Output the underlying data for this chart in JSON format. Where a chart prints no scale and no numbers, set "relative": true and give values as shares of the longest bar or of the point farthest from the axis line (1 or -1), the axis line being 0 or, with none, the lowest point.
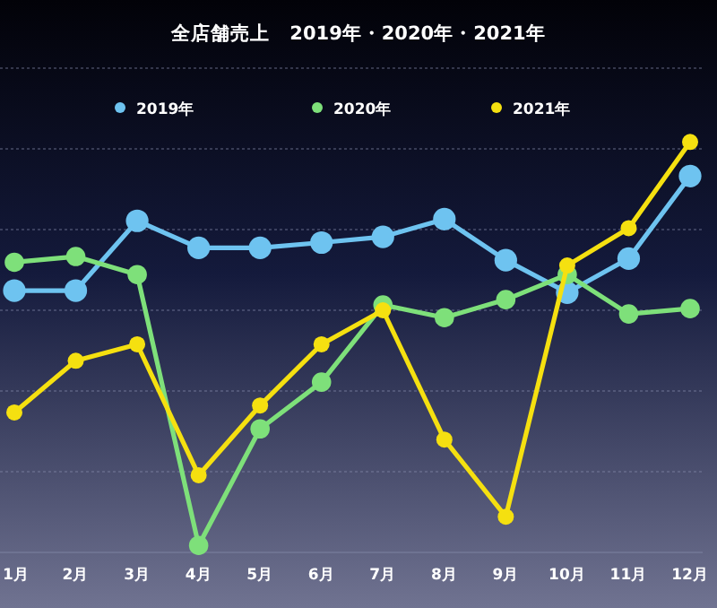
{
  "chart_data": {
    "type": "line",
    "title": "全店舗売上　2019年・2020年・2021年",
    "relative": true,
    "grid": "y",
    "legend": "top",
    "marker": "circle",
    "line_style": "solid",
    "categories": [
      "1月",
      "2月",
      "3月",
      "4月",
      "5月",
      "6月",
      "7月",
      "8月",
      "9月",
      "10月",
      "11月",
      "12月"
    ],
    "series": [
      {
        "name": "2019年",
        "color": "#6ec3f0",
        "values": [
          0.638,
          0.638,
          0.808,
          0.742,
          0.742,
          0.755,
          0.769,
          0.812,
          0.712,
          0.633,
          0.716,
          0.917
        ]
      },
      {
        "name": "2020年",
        "color": "#7ee07a",
        "values": [
          0.707,
          0.721,
          0.677,
          0.017,
          0.301,
          0.415,
          0.603,
          0.572,
          0.616,
          0.677,
          0.581,
          0.594
        ]
      },
      {
        "name": "2021年",
        "color": "#f5e010",
        "values": [
          0.341,
          0.467,
          0.507,
          0.188,
          0.358,
          0.507,
          0.59,
          0.275,
          0.087,
          0.699,
          0.79,
          1
        ]
      }
    ]
  }
}
